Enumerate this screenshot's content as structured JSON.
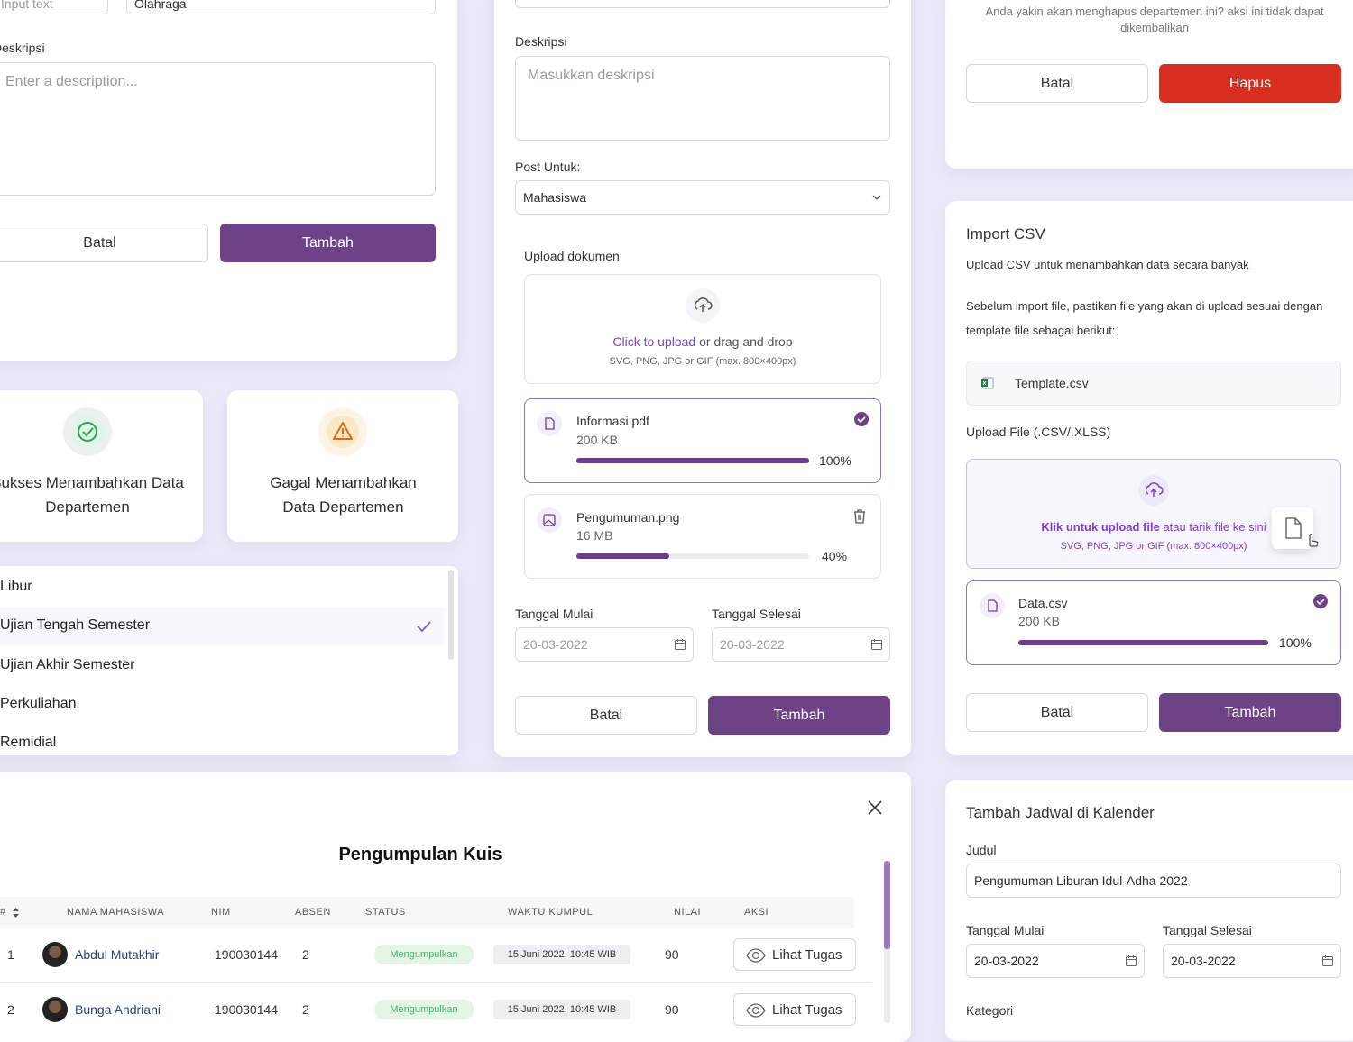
{
  "form_card": {
    "input_placeholder": "Input text",
    "input_value": "Olahraga",
    "description_label": "Deskripsi",
    "description_placeholder": "Enter a description...",
    "cancel": "Batal",
    "submit": "Tambah"
  },
  "post_card": {
    "description_label": "Deskripsi",
    "description_placeholder": "Masukkan deskripsi",
    "post_for_label": "Post Untuk:",
    "post_for_value": "Mahasiswa",
    "upload_label": "Upload dokumen",
    "upload_link": "Click to upload",
    "upload_text": "or drag and drop",
    "upload_hint": "SVG, PNG, JPG or GIF (max. 800×400px)",
    "files": [
      {
        "name": "Informasi.pdf",
        "size": "200 KB",
        "progress": 100,
        "progress_label": "100%"
      },
      {
        "name": "Pengumuman.png",
        "size": "16 MB",
        "progress": 40,
        "progress_label": "40%"
      }
    ],
    "start_label": "Tanggal Mulai",
    "start_placeholder": "20-03-2022",
    "end_label": "Tanggal Selesai",
    "end_placeholder": "20-03-2022",
    "cancel": "Batal",
    "submit": "Tambah"
  },
  "delete_card": {
    "message": "Anda yakin akan menghapus departemen ini? aksi ini tidak dapat dikembalikan",
    "cancel": "Batal",
    "delete": "Hapus"
  },
  "import_card": {
    "title": "Import CSV",
    "subtitle": "Upload CSV untuk menambahkan data secara banyak",
    "instruction": "Sebelum import file, pastikan file yang akan di upload sesuai dengan template file sebagai berikut:",
    "template": "Template.csv",
    "upload_label": "Upload File (.CSV/.XLSS)",
    "upload_link": "Klik untuk upload file",
    "upload_text": "atau tarik file ke sini",
    "upload_hint": "SVG, PNG, JPG or GIF (max. 800×400px)",
    "file": {
      "name": "Data.csv",
      "size": "200 KB",
      "progress": 100,
      "progress_label": "100%"
    },
    "cancel": "Batal",
    "submit": "Tambah"
  },
  "calendar_card": {
    "title": "Tambah Jadwal di Kalender",
    "title_label": "Judul",
    "title_value": "Pengumuman Liburan Idul-Adha 2022",
    "start_label": "Tanggal Mulai",
    "start_value": "20-03-2022",
    "end_label": "Tanggal Selesai",
    "end_value": "20-03-2022",
    "category_label": "Kategori"
  },
  "success_card": {
    "message": "Sukses Menambahkan Data Departemen"
  },
  "error_card": {
    "message": "Gagal Menambahkan Data Departemen"
  },
  "category_list": {
    "items": [
      "Libur",
      "Ujian Tengah Semester",
      "Ujian Akhir Semester",
      "Perkuliahan",
      "Remidial"
    ],
    "selected": 1
  },
  "quiz_table": {
    "title": "Pengumpulan Kuis",
    "columns": [
      "#",
      "NAMA MAHASISWA",
      "NIM",
      "ABSEN",
      "STATUS",
      "WAKTU KUMPUL",
      "NILAI",
      "AKSI"
    ],
    "rows": [
      [
        "1",
        "Abdul Mutakhir",
        "190030144",
        "2",
        "Mengumpulkan",
        "15 Juni 2022, 10:45 WIB",
        "90",
        "Lihat Tugas"
      ],
      [
        "2",
        "Bunga Andriani",
        "190030144",
        "2",
        "Mengumpulkan",
        "15 Juni 2022, 10:45 WIB",
        "90",
        "Lihat Tugas"
      ]
    ]
  }
}
